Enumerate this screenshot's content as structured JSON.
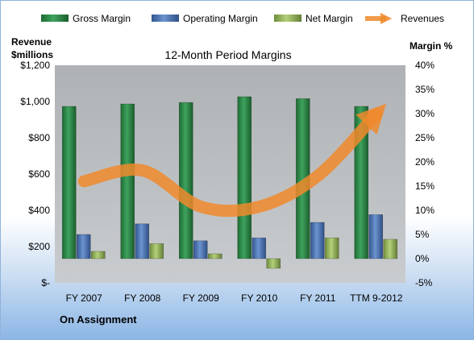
{
  "chart_data": {
    "type": "bar",
    "title": "12-Month Period Margins",
    "subtitle": "",
    "categories": [
      "FY 2007",
      "FY 2008",
      "FY 2009",
      "FY 2010",
      "FY 2011",
      "TTM 9-2012"
    ],
    "series": [
      {
        "name": "Gross Margin",
        "axis": "right",
        "unit": "%",
        "color": "#2e8b4a",
        "values": [
          31.5,
          32.0,
          32.3,
          33.5,
          33.1,
          31.5
        ]
      },
      {
        "name": "Operating Margin",
        "axis": "right",
        "unit": "%",
        "color": "#4a72b3",
        "values": [
          5.0,
          7.2,
          3.7,
          4.3,
          7.5,
          9.1
        ]
      },
      {
        "name": "Net Margin",
        "axis": "right",
        "unit": "%",
        "color": "#94b85a",
        "values": [
          1.5,
          3.1,
          1.0,
          -2.0,
          4.3,
          4.0
        ]
      },
      {
        "name": "Revenues",
        "axis": "left",
        "type": "line",
        "unit": "$millions",
        "color": "#f08a2c",
        "values": [
          560,
          620,
          420,
          420,
          590,
          930
        ]
      }
    ],
    "left_axis": {
      "title_line1": "Revenue",
      "title_line2": "$millions",
      "ylim": [
        0,
        1200
      ],
      "ticks": [
        0,
        200,
        400,
        600,
        800,
        1000,
        1200
      ],
      "tick_labels": [
        "$-",
        "$200",
        "$400",
        "$600",
        "$800",
        "$1,000",
        "$1,200"
      ]
    },
    "right_axis": {
      "title": "Margin %",
      "ylim": [
        -5,
        40
      ],
      "ticks": [
        -5,
        0,
        5,
        10,
        15,
        20,
        25,
        30,
        35,
        40
      ],
      "tick_labels": [
        "-5%",
        "0%",
        "5%",
        "10%",
        "15%",
        "20%",
        "25%",
        "30%",
        "35%",
        "40%"
      ]
    },
    "legend_position": "top",
    "grid": false
  },
  "footer": {
    "label": "On Assignment"
  }
}
